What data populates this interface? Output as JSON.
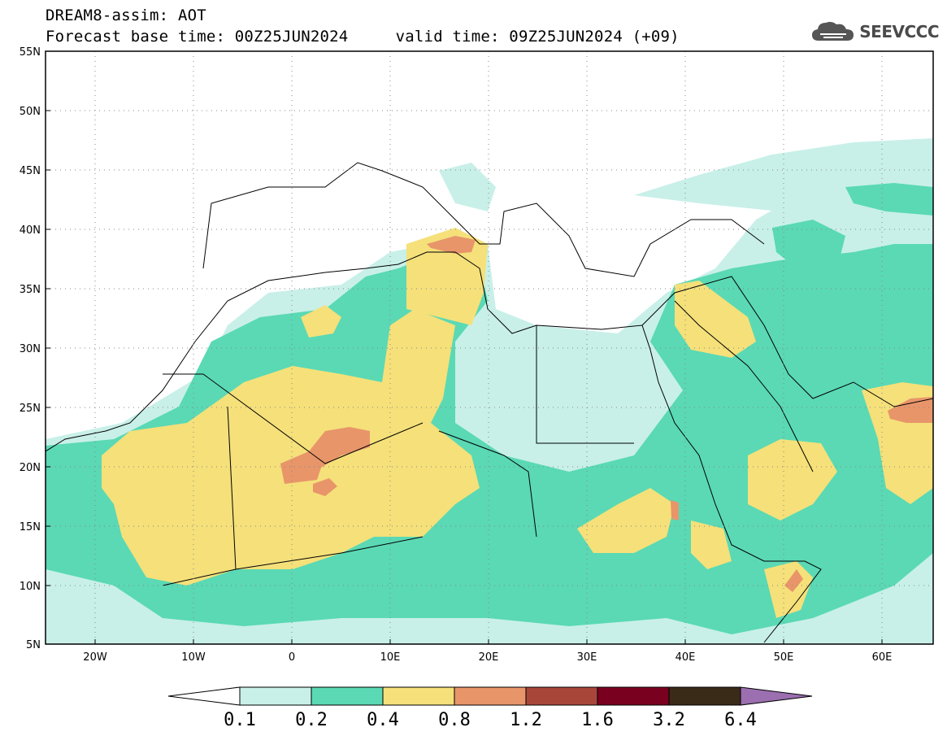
{
  "header": {
    "title": "DREAM8-assim: AOT",
    "subtitle": "Forecast base time: 00Z25JUN2024     valid time: 09Z25JUN2024 (+09)"
  },
  "logo": {
    "text": "SEEVCCC",
    "icon": "cloud-icon"
  },
  "map": {
    "lon_labels": [
      "20W",
      "10W",
      "0",
      "10E",
      "20E",
      "30E",
      "40E",
      "50E",
      "60E"
    ],
    "lat_labels": [
      "55N",
      "50N",
      "45N",
      "40N",
      "35N",
      "30N",
      "25N",
      "20N",
      "15N",
      "10N",
      "5N"
    ],
    "lon_range": [
      -25,
      65
    ],
    "lat_range": [
      5,
      55
    ],
    "grid": "dotted"
  },
  "legend": {
    "labels": [
      "0.1",
      "0.2",
      "0.4",
      "0.8",
      "1.2",
      "1.6",
      "3.2",
      "6.4"
    ],
    "colors": [
      "#ffffff",
      "#c8f0e8",
      "#5ad9b4",
      "#f5e07a",
      "#e8956a",
      "#a8463a",
      "#7a0020",
      "#3a2a18",
      "#9b6fb0"
    ]
  }
}
